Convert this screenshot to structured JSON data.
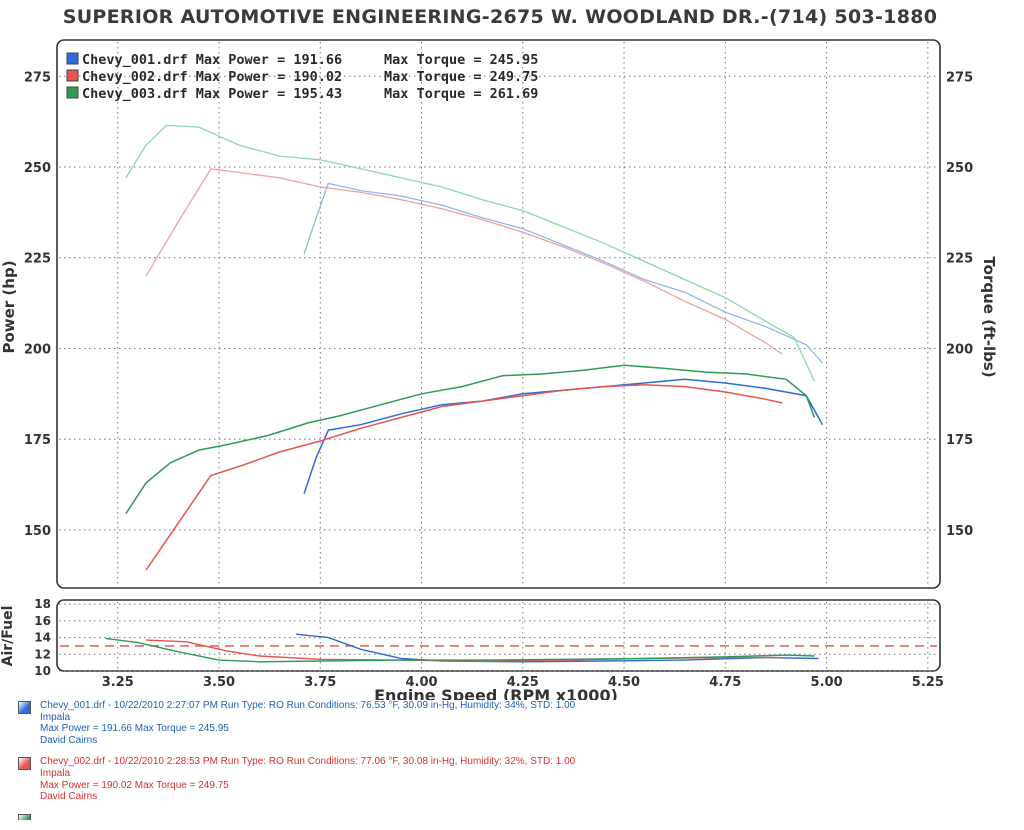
{
  "header": {
    "title": "SUPERIOR AUTOMOTIVE ENGINEERING-2675 W. WOODLAND DR.-(714) 503-1880"
  },
  "legend": [
    {
      "file": "Chevy_001.drf",
      "text": "Chevy_001.drf Max Power = 191.66",
      "torque_text": "Max Torque = 245.95",
      "color": "#2d6bd6"
    },
    {
      "file": "Chevy_002.drf",
      "text": "Chevy_002.drf Max Power = 190.02",
      "torque_text": "Max Torque = 249.75",
      "color": "#e8554c"
    },
    {
      "file": "Chevy_003.drf",
      "text": "Chevy_003.drf Max Power = 195.43",
      "torque_text": "Max Torque = 261.69",
      "color": "#2e9a55"
    }
  ],
  "runs": [
    {
      "line1": "Chevy_001.drf - 10/22/2010 2:27:07 PM  Run Type: RO  Run Conditions: 76.53 °F, 30.09 in-Hg,  Humidity:  34%, STD: 1.00",
      "line2": "Impala",
      "line3": "Max Power = 191.66  Max Torque = 245.95",
      "line4": "David Cairns",
      "color": "#1f5fbf"
    },
    {
      "line1": "Chevy_002.drf - 10/22/2010 2:28:53 PM  Run Type: RO  Run Conditions: 77.06 °F, 30.08 in-Hg,  Humidity:  32%, STD: 1.00",
      "line2": "Impala",
      "line3": "Max Power = 190.02  Max Torque = 249.75",
      "line4": "David Cairns",
      "color": "#d9312b"
    }
  ],
  "chart_data": {
    "type": "line",
    "title": "SUPERIOR AUTOMOTIVE ENGINEERING-2675 W. WOODLAND DR.-(714) 503-1880",
    "xlabel": "Engine Speed (RPM x1000)",
    "ylabel_left": "Power (hp)",
    "ylabel_right": "Torque (ft-lbs)",
    "ylabel_afr": "Air/Fuel",
    "x_ticks": [
      "3.25",
      "3.50",
      "3.75",
      "4.00",
      "4.25",
      "4.50",
      "4.75",
      "5.00",
      "5.25"
    ],
    "xlim": [
      3.1,
      5.28
    ],
    "y_ticks": [
      "150",
      "175",
      "200",
      "225",
      "250",
      "275"
    ],
    "ylim": [
      134,
      285
    ],
    "afr_ticks": [
      "10",
      "12",
      "14",
      "16",
      "18"
    ],
    "afr_ylim": [
      10,
      18.5
    ],
    "afr_target": 13.0,
    "grid": true,
    "legend_position": "top-left",
    "power_series": [
      {
        "name": "Chevy_001.drf",
        "color": "#2d6bd6",
        "points": [
          [
            3.71,
            160
          ],
          [
            3.74,
            170
          ],
          [
            3.77,
            177.5
          ],
          [
            3.85,
            179
          ],
          [
            3.95,
            182
          ],
          [
            4.05,
            184.5
          ],
          [
            4.15,
            185.5
          ],
          [
            4.25,
            187.5
          ],
          [
            4.35,
            188.5
          ],
          [
            4.45,
            189.5
          ],
          [
            4.55,
            190.5
          ],
          [
            4.65,
            191.5
          ],
          [
            4.75,
            190.5
          ],
          [
            4.85,
            189
          ],
          [
            4.95,
            187
          ],
          [
            4.99,
            179
          ]
        ]
      },
      {
        "name": "Chevy_002.drf",
        "color": "#e8554c",
        "points": [
          [
            3.32,
            139
          ],
          [
            3.4,
            152
          ],
          [
            3.48,
            165
          ],
          [
            3.55,
            167.5
          ],
          [
            3.65,
            171.5
          ],
          [
            3.75,
            174.5
          ],
          [
            3.85,
            178
          ],
          [
            3.95,
            181
          ],
          [
            4.05,
            184
          ],
          [
            4.15,
            185.5
          ],
          [
            4.25,
            187
          ],
          [
            4.35,
            188.5
          ],
          [
            4.45,
            189.5
          ],
          [
            4.55,
            190
          ],
          [
            4.65,
            189.5
          ],
          [
            4.75,
            188
          ],
          [
            4.85,
            186
          ],
          [
            4.89,
            185
          ]
        ]
      },
      {
        "name": "Chevy_003.drf",
        "color": "#2e9a55",
        "points": [
          [
            3.27,
            154.5
          ],
          [
            3.32,
            163
          ],
          [
            3.38,
            168.5
          ],
          [
            3.45,
            172
          ],
          [
            3.52,
            173.5
          ],
          [
            3.62,
            176
          ],
          [
            3.72,
            179.5
          ],
          [
            3.8,
            181.5
          ],
          [
            3.9,
            184.5
          ],
          [
            4.0,
            187.5
          ],
          [
            4.1,
            189.5
          ],
          [
            4.2,
            192.5
          ],
          [
            4.3,
            193
          ],
          [
            4.4,
            194
          ],
          [
            4.5,
            195.4
          ],
          [
            4.6,
            194.5
          ],
          [
            4.7,
            193.5
          ],
          [
            4.8,
            193
          ],
          [
            4.9,
            191.5
          ],
          [
            4.95,
            187
          ],
          [
            4.97,
            181
          ]
        ]
      }
    ],
    "torque_series": [
      {
        "name": "Chevy_001.drf",
        "color": "#8fb4f0",
        "points": [
          [
            3.71,
            226
          ],
          [
            3.74,
            236
          ],
          [
            3.77,
            245.5
          ],
          [
            3.85,
            243.5
          ],
          [
            3.95,
            242
          ],
          [
            4.05,
            239.5
          ],
          [
            4.15,
            236
          ],
          [
            4.25,
            233
          ],
          [
            4.35,
            228.5
          ],
          [
            4.45,
            224
          ],
          [
            4.55,
            219
          ],
          [
            4.65,
            215.5
          ],
          [
            4.75,
            210
          ],
          [
            4.85,
            206
          ],
          [
            4.95,
            201
          ],
          [
            4.99,
            196
          ]
        ]
      },
      {
        "name": "Chevy_002.drf",
        "color": "#f2a0a0",
        "points": [
          [
            3.32,
            220
          ],
          [
            3.4,
            235
          ],
          [
            3.48,
            249.5
          ],
          [
            3.55,
            248.5
          ],
          [
            3.65,
            247
          ],
          [
            3.75,
            244.5
          ],
          [
            3.85,
            243
          ],
          [
            3.95,
            241
          ],
          [
            4.05,
            238.5
          ],
          [
            4.15,
            235.5
          ],
          [
            4.25,
            232
          ],
          [
            4.35,
            228
          ],
          [
            4.45,
            223.5
          ],
          [
            4.55,
            218.5
          ],
          [
            4.65,
            213
          ],
          [
            4.75,
            208
          ],
          [
            4.85,
            201.5
          ],
          [
            4.89,
            198.5
          ]
        ]
      },
      {
        "name": "Chevy_003.drf",
        "color": "#8fd4b4",
        "points": [
          [
            3.27,
            247
          ],
          [
            3.32,
            256
          ],
          [
            3.37,
            261.5
          ],
          [
            3.45,
            261
          ],
          [
            3.55,
            256
          ],
          [
            3.65,
            253
          ],
          [
            3.75,
            252
          ],
          [
            3.85,
            249.5
          ],
          [
            3.95,
            247
          ],
          [
            4.05,
            244.5
          ],
          [
            4.15,
            241
          ],
          [
            4.25,
            238
          ],
          [
            4.35,
            233.5
          ],
          [
            4.45,
            229
          ],
          [
            4.55,
            224
          ],
          [
            4.65,
            219
          ],
          [
            4.75,
            214
          ],
          [
            4.85,
            207.5
          ],
          [
            4.92,
            203
          ],
          [
            4.97,
            191
          ]
        ]
      }
    ],
    "afr_series": [
      {
        "name": "Chevy_001.drf",
        "color": "#2d6bd6",
        "points": [
          [
            3.69,
            14.4
          ],
          [
            3.77,
            14.0
          ],
          [
            3.85,
            12.6
          ],
          [
            3.95,
            11.5
          ],
          [
            4.05,
            11.2
          ],
          [
            4.25,
            11.1
          ],
          [
            4.45,
            11.2
          ],
          [
            4.65,
            11.3
          ],
          [
            4.85,
            11.6
          ],
          [
            4.98,
            11.5
          ]
        ]
      },
      {
        "name": "Chevy_002.drf",
        "color": "#e8554c",
        "points": [
          [
            3.32,
            13.7
          ],
          [
            3.42,
            13.5
          ],
          [
            3.52,
            12.4
          ],
          [
            3.6,
            11.8
          ],
          [
            3.75,
            11.4
          ],
          [
            3.95,
            11.3
          ],
          [
            4.15,
            11.2
          ],
          [
            4.35,
            11.3
          ],
          [
            4.55,
            11.5
          ],
          [
            4.75,
            11.6
          ],
          [
            4.89,
            11.6
          ]
        ]
      },
      {
        "name": "Chevy_003.drf",
        "color": "#2e9a55",
        "points": [
          [
            3.22,
            13.9
          ],
          [
            3.3,
            13.4
          ],
          [
            3.4,
            12.3
          ],
          [
            3.5,
            11.3
          ],
          [
            3.6,
            11.1
          ],
          [
            3.75,
            11.2
          ],
          [
            3.95,
            11.3
          ],
          [
            4.15,
            11.3
          ],
          [
            4.35,
            11.4
          ],
          [
            4.55,
            11.5
          ],
          [
            4.75,
            11.7
          ],
          [
            4.9,
            11.9
          ],
          [
            4.97,
            11.8
          ]
        ]
      }
    ]
  }
}
